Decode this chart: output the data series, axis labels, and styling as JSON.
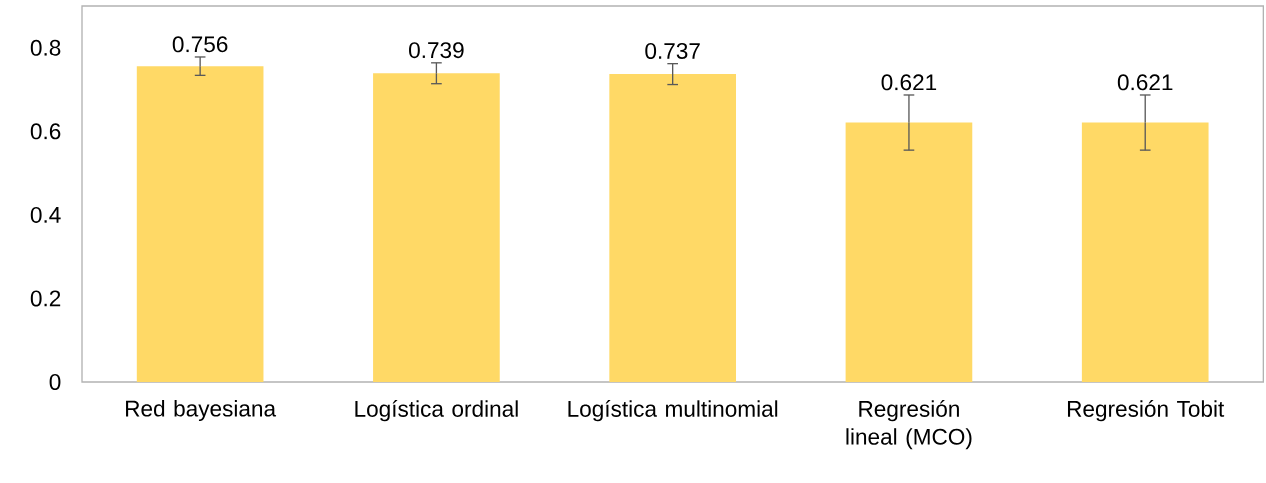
{
  "chart_data": {
    "type": "bar",
    "categories": [
      "Red bayesiana",
      "Logística ordinal",
      "Logística multinomial",
      "Regresión lineal (MCO)",
      "Regresión Tobit"
    ],
    "values": [
      0.756,
      0.739,
      0.737,
      0.621,
      0.621
    ],
    "errors": [
      0.022,
      0.025,
      0.025,
      0.066,
      0.066
    ],
    "color": "#ffd966",
    "data_labels": true,
    "ylim": [
      0,
      0.9
    ],
    "yticks": [
      0,
      0.2,
      0.4,
      0.6,
      0.8
    ],
    "grid": false,
    "legend": false
  }
}
